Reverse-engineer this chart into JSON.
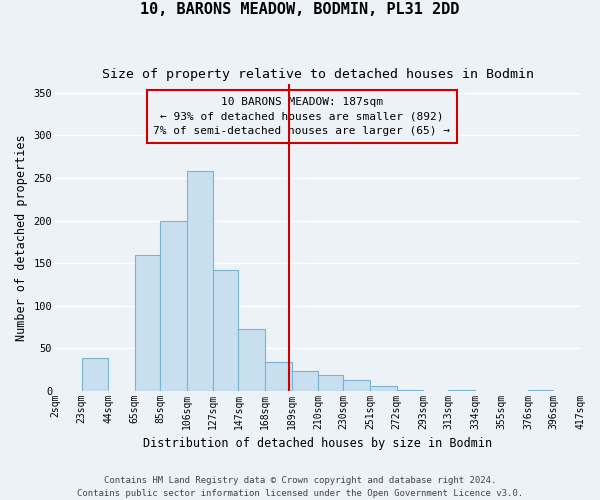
{
  "title": "10, BARONS MEADOW, BODMIN, PL31 2DD",
  "subtitle": "Size of property relative to detached houses in Bodmin",
  "xlabel": "Distribution of detached houses by size in Bodmin",
  "ylabel": "Number of detached properties",
  "bar_color": "#c8dff0",
  "bar_edge_color": "#7ab4d4",
  "bin_edges": [
    2,
    23,
    44,
    65,
    85,
    106,
    127,
    147,
    168,
    189,
    210,
    230,
    251,
    272,
    293,
    313,
    334,
    355,
    376,
    396,
    417
  ],
  "bar_heights": [
    0,
    38,
    0,
    160,
    200,
    258,
    142,
    72,
    34,
    23,
    18,
    13,
    5,
    1,
    0,
    1,
    0,
    0,
    1,
    0
  ],
  "tick_labels": [
    "2sqm",
    "23sqm",
    "44sqm",
    "65sqm",
    "85sqm",
    "106sqm",
    "127sqm",
    "147sqm",
    "168sqm",
    "189sqm",
    "210sqm",
    "230sqm",
    "251sqm",
    "272sqm",
    "293sqm",
    "313sqm",
    "334sqm",
    "355sqm",
    "376sqm",
    "396sqm",
    "417sqm"
  ],
  "property_line_x": 187,
  "property_line_color": "#cc0000",
  "annotation_line1": "10 BARONS MEADOW: 187sqm",
  "annotation_line2": "← 93% of detached houses are smaller (892)",
  "annotation_line3": "7% of semi-detached houses are larger (65) →",
  "ylim": [
    0,
    360
  ],
  "yticks": [
    0,
    50,
    100,
    150,
    200,
    250,
    300,
    350
  ],
  "footer_line1": "Contains HM Land Registry data © Crown copyright and database right 2024.",
  "footer_line2": "Contains public sector information licensed under the Open Government Licence v3.0.",
  "background_color": "#edf2f7",
  "grid_color": "#ffffff",
  "title_fontsize": 11,
  "subtitle_fontsize": 9.5,
  "axis_label_fontsize": 8.5,
  "tick_fontsize": 7,
  "annotation_fontsize": 8,
  "footer_fontsize": 6.5
}
